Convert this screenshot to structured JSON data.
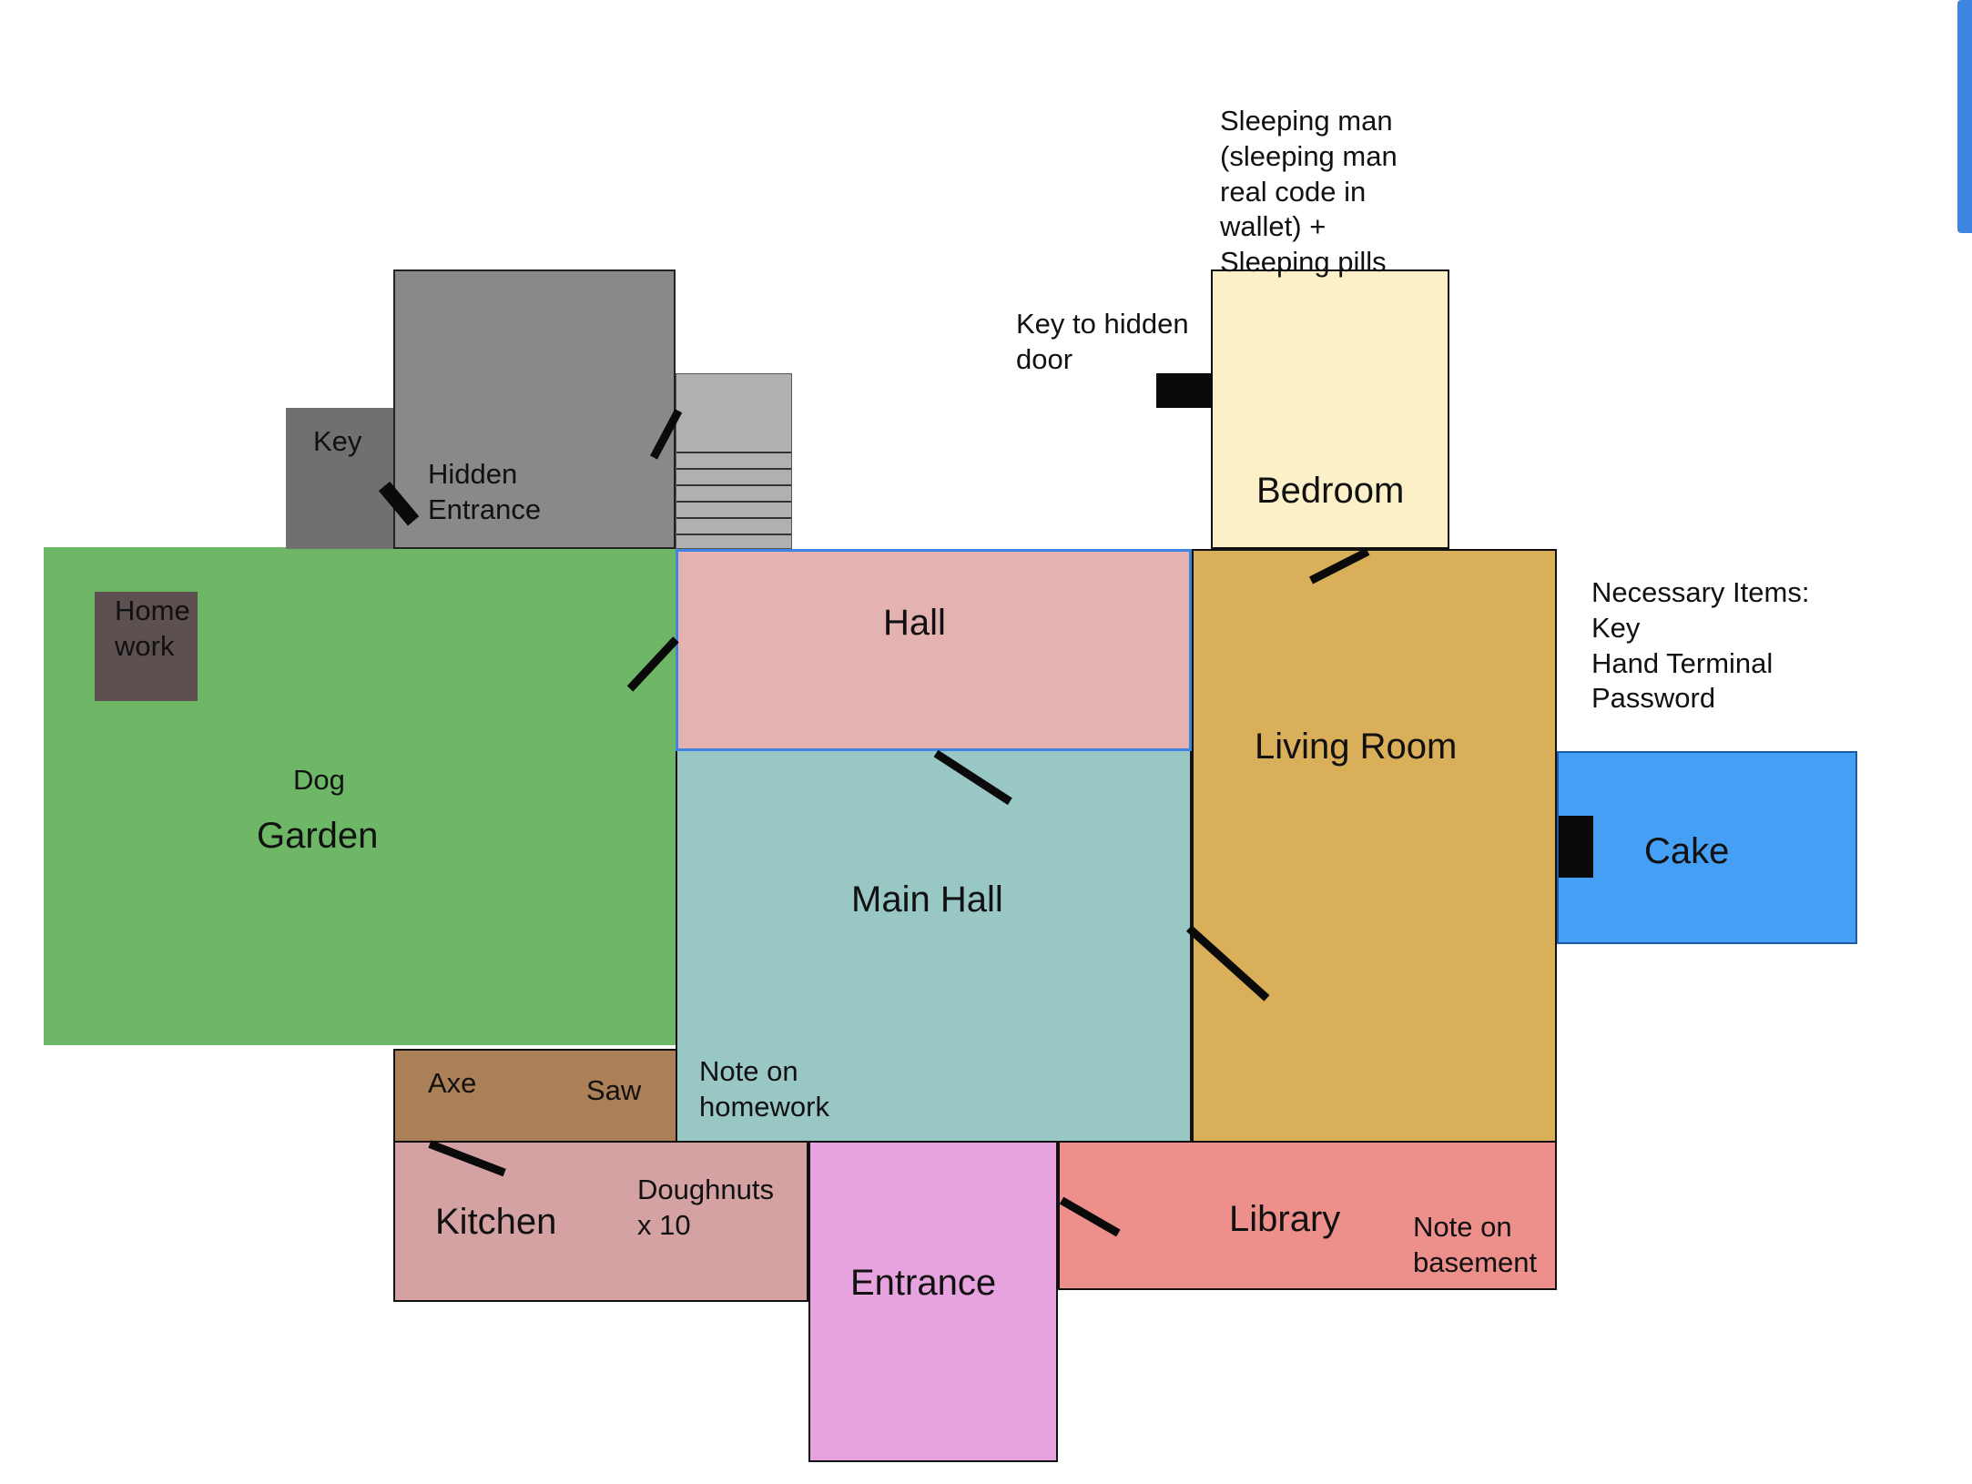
{
  "rooms": {
    "garden": "Garden",
    "hall": "Hall",
    "main_hall": "Main Hall",
    "living_room": "Living Room",
    "bedroom": "Bedroom",
    "cake": "Cake",
    "kitchen": "Kitchen",
    "entrance": "Entrance",
    "library": "Library"
  },
  "items": {
    "key": "Key",
    "hidden_entrance": "Hidden\nEntrance",
    "homework": "Home\nwork",
    "dog": "Dog",
    "axe": "Axe",
    "saw": "Saw",
    "doughnuts": "Doughnuts\nx 10",
    "note_homework": "Note on\nhomework",
    "note_basement": "Note on\nbasement",
    "key_hidden_door": "Key to hidden\ndoor",
    "sleeping_man": "Sleeping man\n(sleeping man\nreal code in\nwallet) +\nSleeping pills",
    "necessary_items": "Necessary Items:\nKey\nHand Terminal\nPassword"
  },
  "colors": {
    "garden": "#6db766",
    "hall": "#e4b2b1",
    "main_hall": "#98c7c4",
    "living_room": "#d9af5a",
    "bedroom": "#fbf0c8",
    "cake": "#449ff5",
    "kitchen": "#d4a2a2",
    "entrance": "#e6a3e0",
    "library": "#ed8f8b",
    "shed": "#898989",
    "key_room": "#707070",
    "stairs": "#b0b0b0",
    "homework": "#5c5050",
    "tools": "#ac8057",
    "selection": "#3d85e0"
  }
}
